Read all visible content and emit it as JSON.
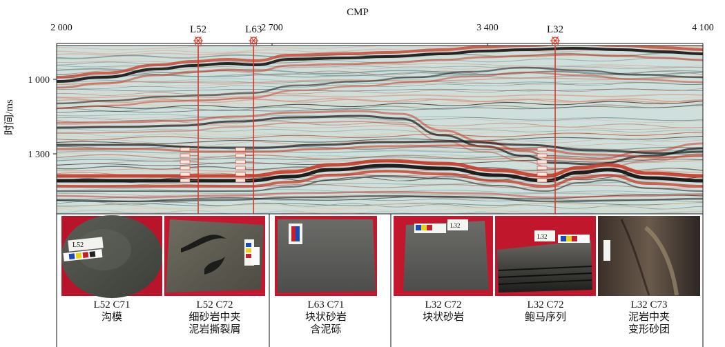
{
  "axis": {
    "x_title": "CMP",
    "x_ticks": [
      {
        "label": "2 000",
        "cmp": 2000
      },
      {
        "label": "2 700",
        "cmp": 2700
      },
      {
        "label": "3 400",
        "cmp": 3400
      },
      {
        "label": "4 100",
        "cmp": 4100
      }
    ],
    "y_title": "时间/ms",
    "y_ticks": [
      {
        "label": "1 000",
        "ms": 1000
      },
      {
        "label": "1 300",
        "ms": 1300
      }
    ]
  },
  "wells": [
    {
      "name": "L52",
      "cmp": 2460
    },
    {
      "name": "L63",
      "cmp": 2640
    },
    {
      "name": "L32",
      "cmp": 3620
    }
  ],
  "cores": [
    {
      "label1": "L52  C71",
      "label2": "沟模",
      "label3": ""
    },
    {
      "label1": "L52  C72",
      "label2": "细砂岩中夹",
      "label3": "泥岩撕裂屑"
    },
    {
      "label1": "L63  C71",
      "label2": "块状砂岩",
      "label3": "含泥砾"
    },
    {
      "label1": "L32  C72",
      "label2": "块状砂岩",
      "label3": ""
    },
    {
      "label1": "L32  C72",
      "label2": "鲍马序列",
      "label3": ""
    },
    {
      "label1": "L32  C73",
      "label2": "泥岩中夹",
      "label3": "变形砂团"
    }
  ],
  "colors": {
    "peak": "#c83a28",
    "trough": "#141414",
    "background": "#cfe0dc",
    "well_line": "#d83a2a",
    "core_bg": "#c01a2c"
  }
}
